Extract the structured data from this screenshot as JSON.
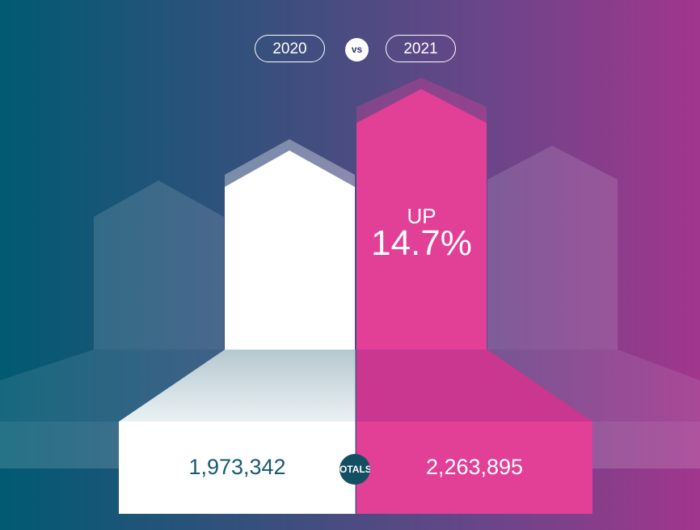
{
  "header": {
    "year_left": "2020",
    "vs_label": "vs",
    "year_right": "2021"
  },
  "change": {
    "direction": "UP",
    "percent": "14.7%"
  },
  "totals": {
    "badge_label": "OTALS",
    "left_value": "1,973,342",
    "right_value": "2,263,895"
  },
  "chart_data": {
    "type": "bar",
    "categories": [
      "2020",
      "2021"
    ],
    "values": [
      1973342,
      2263895
    ],
    "change_percent": 14.7,
    "change_direction": "up",
    "colors": {
      "bar_2020": "#ffffff",
      "bar_2021": "#e23f97",
      "total_2020_text": "#145a72",
      "badge": "#134f63"
    }
  }
}
